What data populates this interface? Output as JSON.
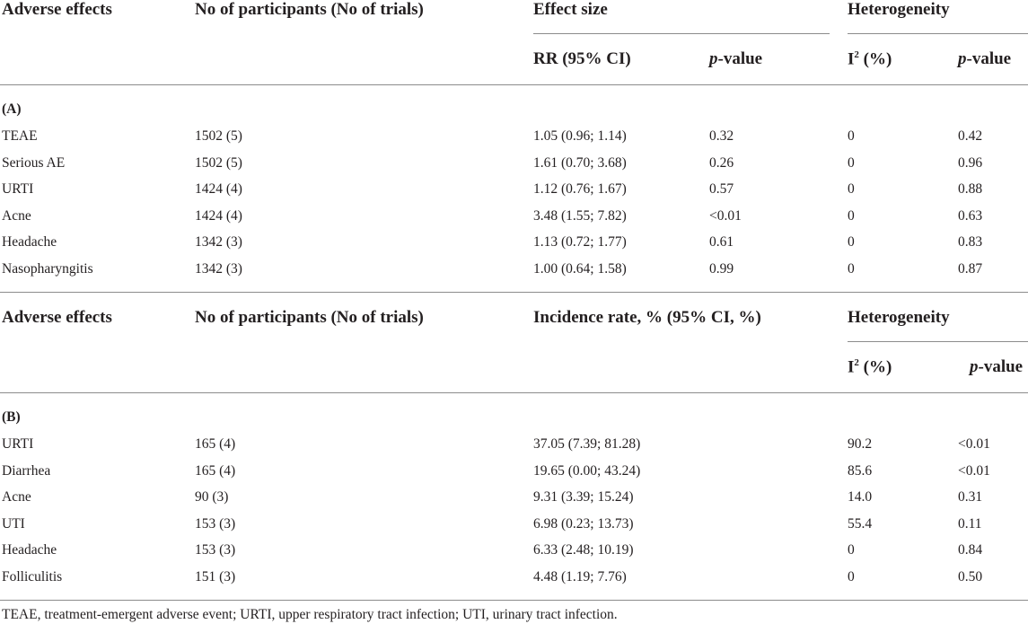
{
  "tableA": {
    "col_adverse": "Adverse effects",
    "col_participants": "No of participants (No of trials)",
    "col_effect_size": "Effect size",
    "col_heterogeneity": "Heterogeneity",
    "sub_rr": "RR (95% CI)",
    "sub_p_italic": "p",
    "sub_p_rest": "-value",
    "sub_i2_base": "I",
    "sub_i2_sup": "2",
    "sub_i2_rest": " (%)",
    "sub_p2_italic": "p",
    "sub_p2_rest": "-value",
    "section_label": "(A)",
    "rows": [
      {
        "effect": "TEAE",
        "participants": "1502 (5)",
        "rr": "1.05 (0.96; 1.14)",
        "p": "0.32",
        "i2": "0",
        "het_p": "0.42"
      },
      {
        "effect": "Serious AE",
        "participants": "1502 (5)",
        "rr": "1.61 (0.70; 3.68)",
        "p": "0.26",
        "i2": "0",
        "het_p": "0.96"
      },
      {
        "effect": "URTI",
        "participants": "1424 (4)",
        "rr": "1.12 (0.76; 1.67)",
        "p": "0.57",
        "i2": "0",
        "het_p": "0.88"
      },
      {
        "effect": "Acne",
        "participants": "1424 (4)",
        "rr": "3.48 (1.55; 7.82)",
        "p": "<0.01",
        "i2": "0",
        "het_p": "0.63"
      },
      {
        "effect": "Headache",
        "participants": "1342 (3)",
        "rr": "1.13 (0.72; 1.77)",
        "p": "0.61",
        "i2": "0",
        "het_p": "0.83"
      },
      {
        "effect": "Nasopharyngitis",
        "participants": "1342 (3)",
        "rr": "1.00 (0.64; 1.58)",
        "p": "0.99",
        "i2": "0",
        "het_p": "0.87"
      }
    ]
  },
  "tableB": {
    "col_adverse": "Adverse effects",
    "col_participants": "No of participants (No of trials)",
    "col_incidence": "Incidence rate, % (95% CI, %)",
    "col_heterogeneity": "Heterogeneity",
    "sub_i2_base": "I",
    "sub_i2_sup": "2",
    "sub_i2_rest": " (%)",
    "sub_p_italic": "p",
    "sub_p_rest": "-value",
    "section_label": "(B)",
    "rows": [
      {
        "effect": "URTI",
        "participants": "165 (4)",
        "rate": "37.05 (7.39; 81.28)",
        "i2": "90.2",
        "het_p": "<0.01"
      },
      {
        "effect": "Diarrhea",
        "participants": "165 (4)",
        "rate": "19.65 (0.00; 43.24)",
        "i2": "85.6",
        "het_p": "<0.01"
      },
      {
        "effect": "Acne",
        "participants": "90 (3)",
        "rate": "9.31 (3.39; 15.24)",
        "i2": "14.0",
        "het_p": "0.31"
      },
      {
        "effect": "UTI",
        "participants": "153 (3)",
        "rate": "6.98 (0.23; 13.73)",
        "i2": "55.4",
        "het_p": "0.11"
      },
      {
        "effect": "Headache",
        "participants": "153 (3)",
        "rate": "6.33 (2.48; 10.19)",
        "i2": "0",
        "het_p": "0.84"
      },
      {
        "effect": "Folliculitis",
        "participants": "151 (3)",
        "rate": "4.48 (1.19; 7.76)",
        "i2": "0",
        "het_p": "0.50"
      }
    ]
  },
  "footnote": "TEAE, treatment-emergent adverse event; URTI, upper respiratory tract infection; UTI, urinary tract infection."
}
